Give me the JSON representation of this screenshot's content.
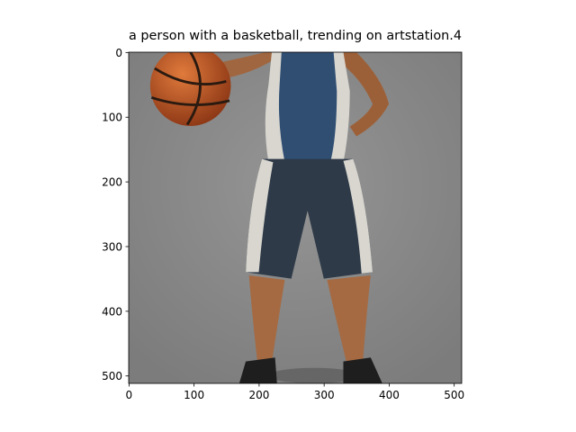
{
  "chart_data": {
    "type": "image",
    "title": "a person with a basketball,  trending on artstation.4",
    "xlim": [
      -0.5,
      511.5
    ],
    "ylim": [
      511.5,
      -0.5
    ],
    "xticks": [
      0,
      100,
      200,
      300,
      400,
      500
    ],
    "yticks": [
      0,
      100,
      200,
      300,
      400,
      500
    ]
  }
}
